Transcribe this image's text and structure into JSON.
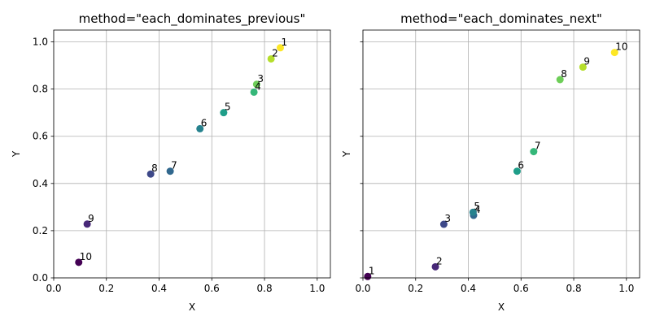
{
  "chart_data": [
    {
      "type": "scatter",
      "title": "method=\"each_dominates_previous\"",
      "xlabel": "X",
      "ylabel": "Y",
      "xlim": [
        0.0,
        1.05
      ],
      "ylim": [
        0.0,
        1.05
      ],
      "xticks": [
        "0.0",
        "0.2",
        "0.4",
        "0.6",
        "0.8",
        "1.0"
      ],
      "yticks": [
        "0.0",
        "0.2",
        "0.4",
        "0.6",
        "0.8",
        "1.0"
      ],
      "grid": true,
      "colormap": "viridis",
      "points": [
        {
          "label": "1",
          "x": 0.86,
          "y": 0.975,
          "color": "#fde725"
        },
        {
          "label": "2",
          "x": 0.825,
          "y": 0.928,
          "color": "#b5de2b"
        },
        {
          "label": "3",
          "x": 0.77,
          "y": 0.82,
          "color": "#6ece58"
        },
        {
          "label": "4",
          "x": 0.76,
          "y": 0.787,
          "color": "#35b779"
        },
        {
          "label": "5",
          "x": 0.645,
          "y": 0.7,
          "color": "#1f9e89"
        },
        {
          "label": "6",
          "x": 0.555,
          "y": 0.632,
          "color": "#26828e"
        },
        {
          "label": "7",
          "x": 0.442,
          "y": 0.452,
          "color": "#31688e"
        },
        {
          "label": "8",
          "x": 0.368,
          "y": 0.44,
          "color": "#3e4989"
        },
        {
          "label": "9",
          "x": 0.127,
          "y": 0.228,
          "color": "#482878"
        },
        {
          "label": "10",
          "x": 0.095,
          "y": 0.066,
          "color": "#440154"
        }
      ]
    },
    {
      "type": "scatter",
      "title": "method=\"each_dominates_next\"",
      "xlabel": "X",
      "ylabel": "Y",
      "xlim": [
        0.0,
        1.05
      ],
      "ylim": [
        0.0,
        1.05
      ],
      "xticks": [
        "0.0",
        "0.2",
        "0.4",
        "0.6",
        "0.8",
        "1.0"
      ],
      "yticks": [],
      "grid": true,
      "colormap": "viridis",
      "points": [
        {
          "label": "1",
          "x": 0.018,
          "y": 0.006,
          "color": "#440154"
        },
        {
          "label": "2",
          "x": 0.275,
          "y": 0.047,
          "color": "#482878"
        },
        {
          "label": "3",
          "x": 0.307,
          "y": 0.227,
          "color": "#3e4989"
        },
        {
          "label": "4",
          "x": 0.42,
          "y": 0.265,
          "color": "#31688e"
        },
        {
          "label": "5",
          "x": 0.418,
          "y": 0.278,
          "color": "#26828e"
        },
        {
          "label": "6",
          "x": 0.585,
          "y": 0.452,
          "color": "#1f9e89"
        },
        {
          "label": "7",
          "x": 0.648,
          "y": 0.535,
          "color": "#35b779"
        },
        {
          "label": "8",
          "x": 0.748,
          "y": 0.84,
          "color": "#6ece58"
        },
        {
          "label": "9",
          "x": 0.835,
          "y": 0.893,
          "color": "#b5de2b"
        },
        {
          "label": "10",
          "x": 0.955,
          "y": 0.955,
          "color": "#fde725"
        }
      ]
    }
  ]
}
